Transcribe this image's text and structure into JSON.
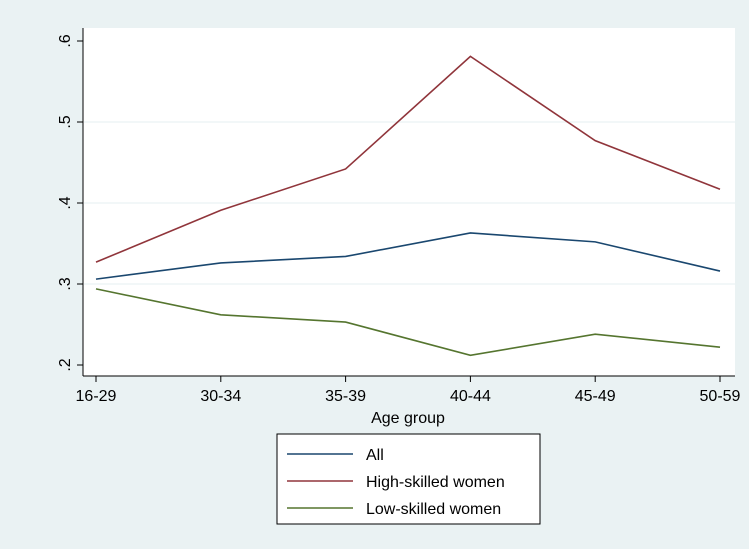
{
  "chart_data": {
    "type": "line",
    "title": "",
    "xlabel": "Age group",
    "ylabel": "",
    "categories": [
      "16-29",
      "30-34",
      "35-39",
      "40-44",
      "45-49",
      "50-59"
    ],
    "ylim": [
      0.2,
      0.6
    ],
    "yticks": [
      0.2,
      0.3,
      0.4,
      0.5,
      0.6
    ],
    "ytick_labels": [
      ".2",
      ".3",
      ".4",
      ".5",
      ".6"
    ],
    "grid": true,
    "legend_position": "bottom",
    "series": [
      {
        "name": "All",
        "color": "#1a476f",
        "values": [
          0.306,
          0.326,
          0.334,
          0.363,
          0.352,
          0.316
        ]
      },
      {
        "name": "High-skilled women",
        "color": "#90353b",
        "values": [
          0.327,
          0.391,
          0.442,
          0.581,
          0.477,
          0.417
        ]
      },
      {
        "name": "Low-skilled women",
        "color": "#55752f",
        "values": [
          0.294,
          0.262,
          0.253,
          0.212,
          0.238,
          0.222
        ]
      }
    ]
  }
}
